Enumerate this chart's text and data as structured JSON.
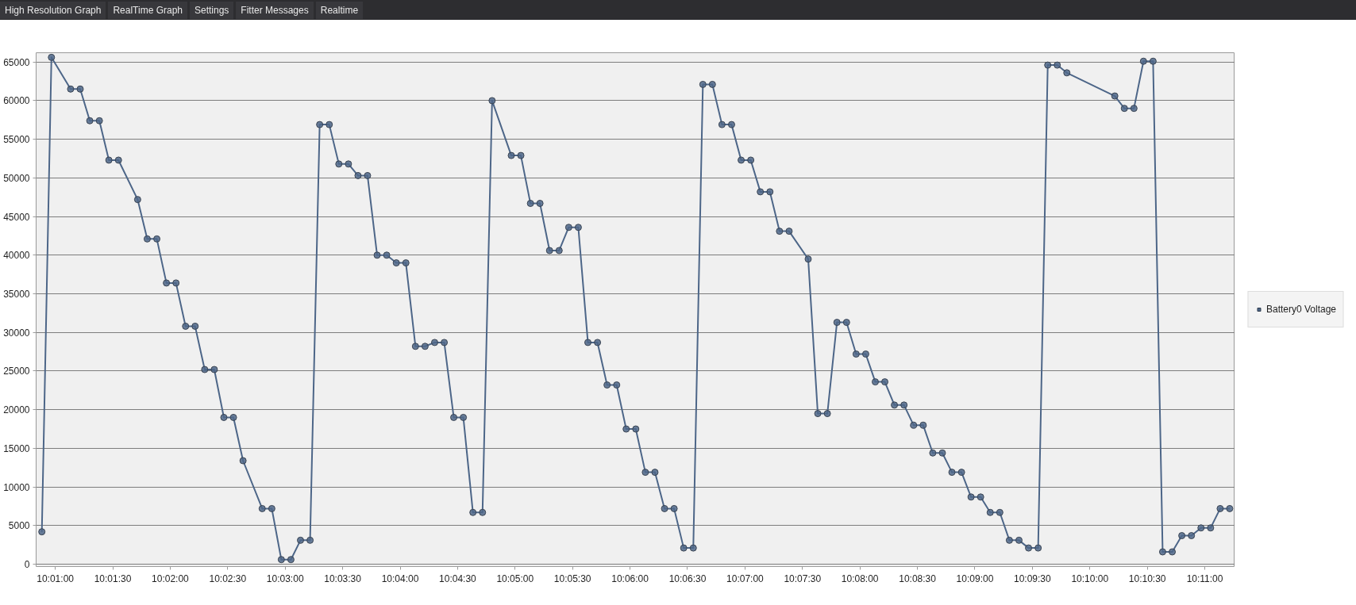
{
  "chart_data": {
    "type": "line",
    "annotations": [
      "High Resolution Graph",
      "RealTime Graph",
      "Settings",
      "Fitter Messages",
      "Realtime"
    ],
    "x": [
      10.01472,
      10.01611,
      10.01889,
      10.02028,
      10.02167,
      10.02306,
      10.02444,
      10.02583,
      10.02861,
      10.03,
      10.03139,
      10.03278,
      10.03417,
      10.03556,
      10.03694,
      10.03833,
      10.03972,
      10.04111,
      10.0425,
      10.04389,
      10.04667,
      10.04806,
      10.04944,
      10.05083,
      10.05222,
      10.05361,
      10.055,
      10.05639,
      10.05778,
      10.05917,
      10.06056,
      10.06194,
      10.06333,
      10.06472,
      10.06611,
      10.0675,
      10.06889,
      10.07028,
      10.07167,
      10.07306,
      10.07444,
      10.07583,
      10.07722,
      10.07861,
      10.08,
      10.08278,
      10.08417,
      10.08556,
      10.08694,
      10.08833,
      10.08972,
      10.09111,
      10.0925,
      10.09389,
      10.09528,
      10.09667,
      10.09806,
      10.09944,
      10.10083,
      10.10222,
      10.10361,
      10.105,
      10.10639,
      10.10778,
      10.10917,
      10.11056,
      10.11194,
      10.11333,
      10.11472,
      10.11611,
      10.1175,
      10.11889,
      10.12028,
      10.12167,
      10.12306,
      10.12583,
      10.12722,
      10.12861,
      10.13,
      10.13139,
      10.13278,
      10.13417,
      10.13556,
      10.13694,
      10.13833,
      10.13972,
      10.14111,
      10.1425,
      10.14389,
      10.14528,
      10.14667,
      10.14806,
      10.14944,
      10.15083,
      10.15222,
      10.15361,
      10.155,
      10.15639,
      10.15778,
      10.15917,
      10.16056,
      10.16194,
      10.16333,
      10.17028,
      10.17167,
      10.17306,
      10.17444,
      10.17583,
      10.17722,
      10.17861,
      10.18,
      10.18139,
      10.18278,
      10.18417,
      10.18556,
      10.18694
    ],
    "series": [
      {
        "name": "Battery0 Voltage",
        "color": "#4d6688",
        "values": [
          4200,
          65600,
          61500,
          61500,
          57400,
          57400,
          52300,
          52300,
          47200,
          42100,
          42100,
          36400,
          36400,
          30800,
          30800,
          25200,
          25200,
          19000,
          19000,
          13400,
          7200,
          7200,
          600,
          600,
          3100,
          3100,
          56900,
          56900,
          51800,
          51800,
          50300,
          50300,
          40000,
          40000,
          39000,
          39000,
          28200,
          28200,
          28700,
          28700,
          19000,
          19000,
          6700,
          6700,
          60000,
          52900,
          52900,
          46700,
          46700,
          40600,
          40600,
          43600,
          43600,
          28700,
          28700,
          23200,
          23200,
          17500,
          17500,
          11900,
          11900,
          7200,
          7200,
          2100,
          2100,
          62100,
          62100,
          56900,
          56900,
          52300,
          52300,
          48200,
          48200,
          43100,
          43100,
          39500,
          19500,
          19500,
          31300,
          31300,
          27200,
          27200,
          23600,
          23600,
          20600,
          20600,
          18000,
          18000,
          14400,
          14400,
          11900,
          11900,
          8700,
          8700,
          6700,
          6700,
          3100,
          3100,
          2100,
          2100,
          64600,
          64600,
          63600,
          60600,
          59000,
          59000,
          65100,
          65100,
          1600,
          1600,
          3700,
          3700,
          4700,
          4700,
          7200,
          7200
        ]
      }
    ],
    "xlim": [
      10.01389,
      10.1877
    ],
    "xticks": [
      {
        "value": 10.016667,
        "label": "10:01:00"
      },
      {
        "value": 10.025,
        "label": "10:01:30"
      },
      {
        "value": 10.033333,
        "label": "10:02:00"
      },
      {
        "value": 10.041667,
        "label": "10:02:30"
      },
      {
        "value": 10.05,
        "label": "10:03:00"
      },
      {
        "value": 10.058333,
        "label": "10:03:30"
      },
      {
        "value": 10.066667,
        "label": "10:04:00"
      },
      {
        "value": 10.075,
        "label": "10:04:30"
      },
      {
        "value": 10.083333,
        "label": "10:05:00"
      },
      {
        "value": 10.091667,
        "label": "10:05:30"
      },
      {
        "value": 10.1,
        "label": "10:06:00"
      },
      {
        "value": 10.108333,
        "label": "10:06:30"
      },
      {
        "value": 10.116667,
        "label": "10:07:00"
      },
      {
        "value": 10.125,
        "label": "10:07:30"
      },
      {
        "value": 10.133333,
        "label": "10:08:00"
      },
      {
        "value": 10.141667,
        "label": "10:08:30"
      },
      {
        "value": 10.15,
        "label": "10:09:00"
      },
      {
        "value": 10.158333,
        "label": "10:09:30"
      },
      {
        "value": 10.166667,
        "label": "10:10:00"
      },
      {
        "value": 10.175,
        "label": "10:10:30"
      },
      {
        "value": 10.183333,
        "label": "10:11:00"
      }
    ],
    "ylim": [
      -300,
      66200
    ],
    "yticks": [
      0,
      5000,
      10000,
      15000,
      20000,
      25000,
      30000,
      35000,
      40000,
      45000,
      50000,
      55000,
      60000,
      65000
    ],
    "grid": "y",
    "legend": "right",
    "marker": "circle"
  }
}
